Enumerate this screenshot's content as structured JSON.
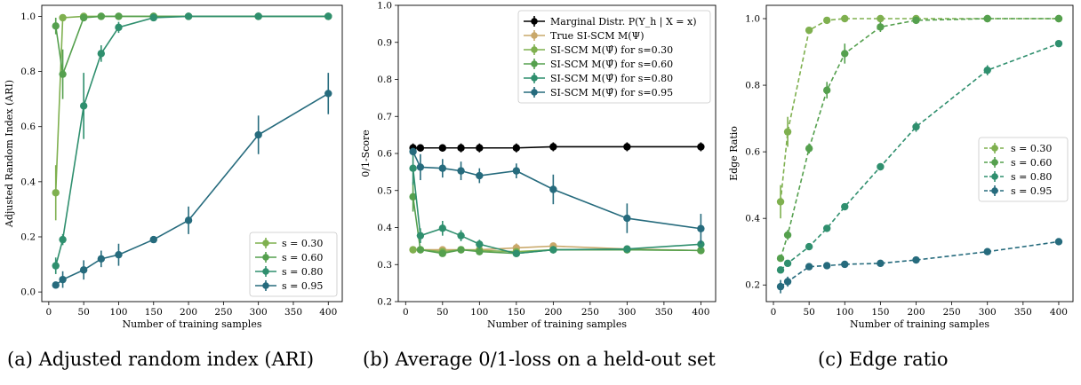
{
  "captions": [
    "(a) Adjusted random index (ARI)",
    "(b) Average 0/1-loss on a held-out set",
    "(c) Edge ratio"
  ],
  "chart_data": [
    {
      "type": "line",
      "xlabel": "Number of training samples",
      "ylabel": "Adjusted Random Index (ARI)",
      "xlim": [
        -10,
        420
      ],
      "ylim": [
        -0.035,
        1.04
      ],
      "xticks": [
        0,
        50,
        100,
        150,
        200,
        250,
        300,
        350,
        400
      ],
      "yticks": [
        0.0,
        0.2,
        0.4,
        0.6,
        0.8,
        1.0
      ],
      "ytick_labels": [
        "0.0",
        "0.2",
        "0.4",
        "0.6",
        "0.8",
        "1.0"
      ],
      "legend": "bottom-right",
      "series": [
        {
          "name": "s = 0.30",
          "color": "#7fb04f",
          "dashed": false,
          "x": [
            10,
            20,
            50,
            75,
            100,
            150,
            200,
            300,
            400
          ],
          "y": [
            0.36,
            0.995,
            1.0,
            1.0,
            1.0,
            1.0,
            1.0,
            1.0,
            1.0
          ],
          "err": [
            0.1,
            0.0,
            0.0,
            0.0,
            0.0,
            0.0,
            0.0,
            0.0,
            0.0
          ]
        },
        {
          "name": "s = 0.60",
          "color": "#55a04e",
          "dashed": false,
          "x": [
            10,
            20,
            50,
            75,
            100,
            150,
            200,
            300,
            400
          ],
          "y": [
            0.965,
            0.79,
            0.995,
            1.0,
            1.0,
            1.0,
            1.0,
            1.0,
            1.0
          ],
          "err": [
            0.03,
            0.09,
            0.01,
            0.0,
            0.0,
            0.0,
            0.0,
            0.0,
            0.0
          ]
        },
        {
          "name": "s = 0.80",
          "color": "#2f8f6e",
          "dashed": false,
          "x": [
            10,
            20,
            50,
            75,
            100,
            150,
            200,
            300,
            400
          ],
          "y": [
            0.095,
            0.19,
            0.675,
            0.865,
            0.96,
            0.995,
            1.0,
            1.0,
            1.0
          ],
          "err": [
            0.03,
            0.02,
            0.12,
            0.03,
            0.02,
            0.005,
            0.0,
            0.0,
            0.0
          ]
        },
        {
          "name": "s = 0.95",
          "color": "#266b7d",
          "dashed": false,
          "x": [
            10,
            20,
            50,
            75,
            100,
            150,
            200,
            300,
            400
          ],
          "y": [
            0.025,
            0.045,
            0.08,
            0.12,
            0.135,
            0.19,
            0.26,
            0.57,
            0.72
          ],
          "err": [
            0.005,
            0.03,
            0.035,
            0.03,
            0.04,
            0.005,
            0.05,
            0.07,
            0.075
          ]
        }
      ]
    },
    {
      "type": "line",
      "xlabel": "Number of training samples",
      "ylabel": "0/1-Score",
      "xlim": [
        -10,
        420
      ],
      "ylim": [
        0.2,
        1.0
      ],
      "xticks": [
        0,
        50,
        100,
        150,
        200,
        250,
        300,
        350,
        400
      ],
      "yticks": [
        0.2,
        0.3,
        0.4,
        0.5,
        0.6,
        0.7,
        0.8,
        0.9,
        1.0
      ],
      "ytick_labels": [
        "0.2",
        "0.3",
        "0.4",
        "0.5",
        "0.6",
        "0.7",
        "0.8",
        "0.9",
        "1.0"
      ],
      "legend": "top-right",
      "series": [
        {
          "name": "Marginal Distr. P(Y_h | X = x)",
          "color": "#000000",
          "dashed": false,
          "x": [
            10,
            20,
            50,
            75,
            100,
            150,
            200,
            300,
            400
          ],
          "y": [
            0.615,
            0.615,
            0.615,
            0.615,
            0.615,
            0.615,
            0.618,
            0.618,
            0.618
          ],
          "err": [
            0.012,
            0.01,
            0.01,
            0.012,
            0.012,
            0.012,
            0.012,
            0.012,
            0.012
          ]
        },
        {
          "name": "True SI-SCM M(Ψ)",
          "color": "#c9a86a",
          "dashed": false,
          "x": [
            10,
            20,
            50,
            75,
            100,
            150,
            200,
            300,
            400
          ],
          "y": [
            0.34,
            0.34,
            0.34,
            0.34,
            0.34,
            0.345,
            0.35,
            0.342,
            0.338
          ],
          "err": [
            0.008,
            0.006,
            0.006,
            0.006,
            0.006,
            0.012,
            0.005,
            0.006,
            0.006
          ]
        },
        {
          "name": "SI-SCM M(Ψ̂) for s=0.30",
          "color": "#7fb04f",
          "dashed": false,
          "x": [
            10,
            20,
            50,
            75,
            100,
            150,
            200,
            300,
            400
          ],
          "y": [
            0.34,
            0.34,
            0.335,
            0.34,
            0.338,
            0.335,
            0.34,
            0.34,
            0.338
          ],
          "err": [
            0.006,
            0.006,
            0.006,
            0.006,
            0.006,
            0.006,
            0.006,
            0.006,
            0.006
          ]
        },
        {
          "name": "SI-SCM M(Ψ̂) for s=0.60",
          "color": "#55a04e",
          "dashed": false,
          "x": [
            10,
            20,
            50,
            75,
            100,
            150,
            200,
            300,
            400
          ],
          "y": [
            0.483,
            0.34,
            0.33,
            0.34,
            0.335,
            0.33,
            0.34,
            0.34,
            0.338
          ],
          "err": [
            0.04,
            0.006,
            0.008,
            0.006,
            0.006,
            0.006,
            0.006,
            0.006,
            0.006
          ]
        },
        {
          "name": "SI-SCM M(Ψ̂) for s=0.80",
          "color": "#2f8f6e",
          "dashed": false,
          "x": [
            10,
            20,
            50,
            75,
            100,
            150,
            200,
            300,
            400
          ],
          "y": [
            0.56,
            0.378,
            0.398,
            0.378,
            0.355,
            0.33,
            0.34,
            0.342,
            0.355
          ],
          "err": [
            0.045,
            0.02,
            0.02,
            0.015,
            0.012,
            0.008,
            0.01,
            0.01,
            0.012
          ]
        },
        {
          "name": "SI-SCM M(Ψ̂) for s=0.95",
          "color": "#266b7d",
          "dashed": false,
          "x": [
            10,
            20,
            50,
            75,
            100,
            150,
            200,
            300,
            400
          ],
          "y": [
            0.605,
            0.563,
            0.56,
            0.553,
            0.54,
            0.553,
            0.503,
            0.425,
            0.397
          ],
          "err": [
            0.01,
            0.035,
            0.025,
            0.025,
            0.02,
            0.02,
            0.04,
            0.04,
            0.04
          ]
        }
      ]
    },
    {
      "type": "line",
      "xlabel": "Number of training samples",
      "ylabel": "Edge Ratio",
      "xlim": [
        -10,
        420
      ],
      "ylim": [
        0.15,
        1.04
      ],
      "xticks": [
        0,
        50,
        100,
        150,
        200,
        250,
        300,
        350,
        400
      ],
      "yticks": [
        0.2,
        0.4,
        0.6,
        0.8,
        1.0
      ],
      "ytick_labels": [
        "0.2",
        "0.4",
        "0.6",
        "0.8",
        "1.0"
      ],
      "legend": "center-right",
      "series": [
        {
          "name": "s = 0.30",
          "color": "#7fb04f",
          "dashed": true,
          "x": [
            10,
            20,
            50,
            75,
            100,
            150,
            200,
            300,
            400
          ],
          "y": [
            0.45,
            0.66,
            0.965,
            0.995,
            1.0,
            1.0,
            1.0,
            1.0,
            1.0
          ],
          "err": [
            0.05,
            0.045,
            0.01,
            0.005,
            0.0,
            0.0,
            0.0,
            0.0,
            0.0
          ]
        },
        {
          "name": "s = 0.60",
          "color": "#55a04e",
          "dashed": true,
          "x": [
            10,
            20,
            50,
            75,
            100,
            150,
            200,
            300,
            400
          ],
          "y": [
            0.28,
            0.35,
            0.61,
            0.785,
            0.895,
            0.975,
            0.995,
            1.0,
            1.0
          ],
          "err": [
            0.01,
            0.015,
            0.015,
            0.025,
            0.03,
            0.015,
            0.005,
            0.0,
            0.0
          ]
        },
        {
          "name": "s = 0.80",
          "color": "#2f8f6e",
          "dashed": true,
          "x": [
            10,
            20,
            50,
            75,
            100,
            150,
            200,
            300,
            400
          ],
          "y": [
            0.245,
            0.265,
            0.315,
            0.37,
            0.435,
            0.555,
            0.675,
            0.845,
            0.925
          ],
          "err": [
            0.01,
            0.01,
            0.008,
            0.008,
            0.008,
            0.01,
            0.015,
            0.015,
            0.006
          ]
        },
        {
          "name": "s = 0.95",
          "color": "#266b7d",
          "dashed": true,
          "x": [
            10,
            20,
            50,
            75,
            100,
            150,
            200,
            300,
            400
          ],
          "y": [
            0.195,
            0.21,
            0.255,
            0.258,
            0.262,
            0.265,
            0.275,
            0.3,
            0.33
          ],
          "err": [
            0.02,
            0.015,
            0.006,
            0.004,
            0.004,
            0.004,
            0.004,
            0.004,
            0.004
          ]
        }
      ]
    }
  ]
}
